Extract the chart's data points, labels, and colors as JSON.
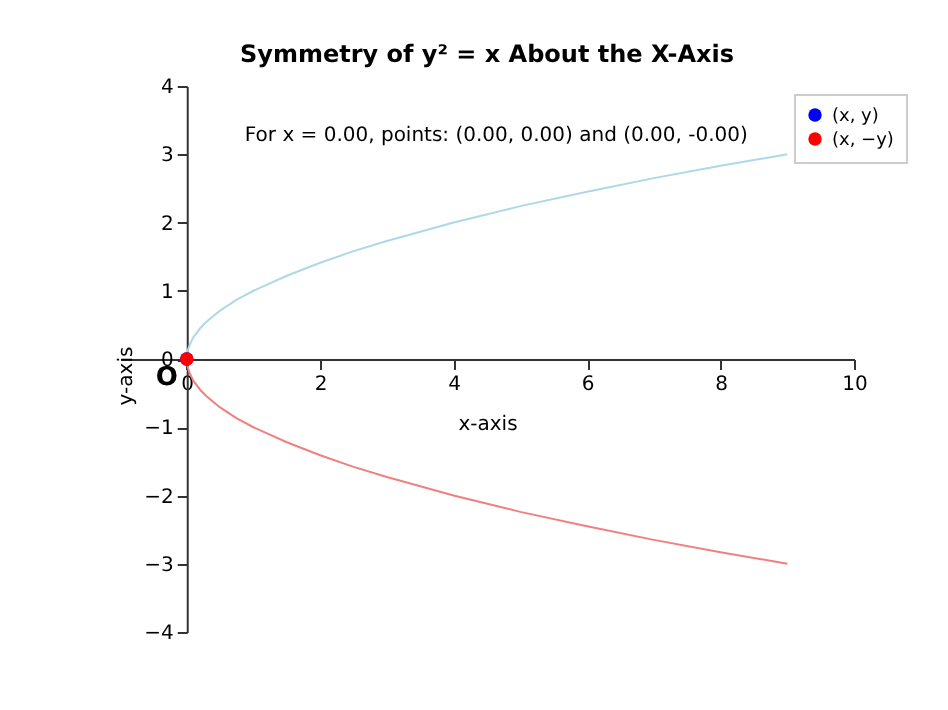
{
  "chart_data": {
    "type": "line",
    "title": "Symmetry of y² = x About the X-Axis",
    "xlabel": "x-axis",
    "ylabel": "y-axis",
    "xlim": [
      -1,
      10
    ],
    "ylim": [
      -4,
      4
    ],
    "xticks": [
      0,
      2,
      4,
      6,
      8,
      10
    ],
    "yticks": [
      -4,
      -3,
      -2,
      -1,
      0,
      1,
      2,
      3,
      4
    ],
    "grid": false,
    "legend": "top right",
    "line_style": "solid",
    "annotations": [
      "For x = 0.00, points: (0.00, 0.00) and (0.00, -0.00)",
      {
        "text": "O",
        "x": 0,
        "y": 0
      }
    ],
    "series": [
      {
        "color": "#add8e6",
        "x": [
          0,
          0.02,
          0.05,
          0.1,
          0.2,
          0.3,
          0.5,
          0.75,
          1,
          1.5,
          2,
          2.5,
          3,
          4,
          5,
          6,
          7,
          8,
          9
        ],
        "values": [
          0,
          0.14,
          0.22,
          0.32,
          0.45,
          0.55,
          0.71,
          0.87,
          1,
          1.22,
          1.41,
          1.58,
          1.73,
          2,
          2.24,
          2.45,
          2.65,
          2.83,
          3
        ]
      },
      {
        "color": "#f08080",
        "x": [
          0,
          0.02,
          0.05,
          0.1,
          0.2,
          0.3,
          0.5,
          0.75,
          1,
          1.5,
          2,
          2.5,
          3,
          4,
          5,
          6,
          7,
          8,
          9
        ],
        "values": [
          0,
          -0.14,
          -0.22,
          -0.32,
          -0.45,
          -0.55,
          -0.71,
          -0.87,
          -1,
          -1.22,
          -1.41,
          -1.58,
          -1.73,
          -2,
          -2.24,
          -2.45,
          -2.65,
          -2.83,
          -3
        ]
      },
      {
        "type": "scatter",
        "name": "(x, y)",
        "color": "#0000ff",
        "marker": "circle",
        "x": [
          0
        ],
        "values": [
          0
        ]
      },
      {
        "type": "scatter",
        "name": "(x, −y)",
        "color": "#ff0000",
        "marker": "circle",
        "x": [
          0
        ],
        "values": [
          0
        ]
      }
    ]
  }
}
